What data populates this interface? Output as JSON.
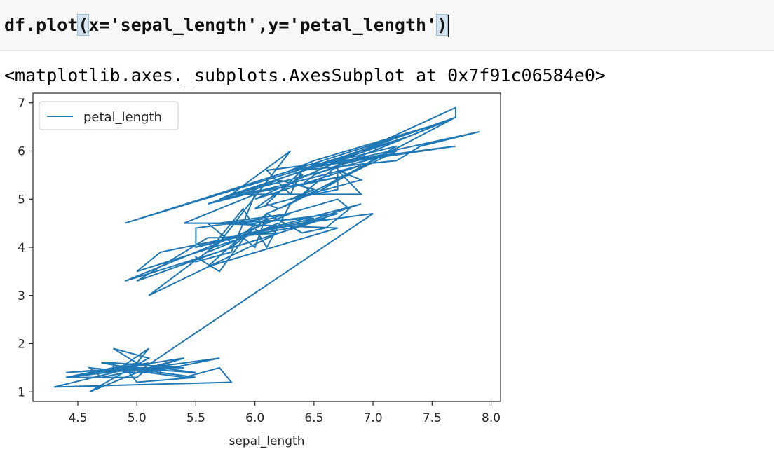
{
  "input_cell": {
    "code_segments": [
      {
        "text": "df.plot",
        "highlight": false
      },
      {
        "text": "(",
        "highlight": true
      },
      {
        "text": "x='sepal_length',y='petal_length'",
        "highlight": false
      },
      {
        "text": ")",
        "highlight": true
      }
    ]
  },
  "output": {
    "repr_text": "<matplotlib.axes._subplots.AxesSubplot at 0x7f91c06584e0>"
  },
  "colors": {
    "series": "#1f77b4",
    "cell_background": "#f7f7f7",
    "paren_highlight": "#d4e4f0"
  },
  "chart_data": {
    "type": "line",
    "title": "",
    "xlabel": "sepal_length",
    "ylabel": "",
    "xlim": [
      4.12,
      8.08
    ],
    "ylim": [
      0.8,
      7.2
    ],
    "xticks": [
      4.5,
      5.0,
      5.5,
      6.0,
      6.5,
      7.0,
      7.5,
      8.0
    ],
    "xtick_labels": [
      "4.5",
      "5.0",
      "5.5",
      "6.0",
      "6.5",
      "7.0",
      "7.5",
      "8.0"
    ],
    "yticks": [
      1,
      2,
      3,
      4,
      5,
      6,
      7
    ],
    "ytick_labels": [
      "1",
      "2",
      "3",
      "4",
      "5",
      "6",
      "7"
    ],
    "grid": false,
    "legend": {
      "position": "upper-left",
      "entries": [
        "petal_length"
      ]
    },
    "series": [
      {
        "name": "petal_length",
        "x": [
          5.1,
          4.9,
          4.7,
          4.6,
          5.0,
          5.4,
          4.6,
          5.0,
          4.4,
          4.9,
          5.4,
          4.8,
          4.8,
          4.3,
          5.8,
          5.7,
          5.4,
          5.1,
          5.7,
          5.1,
          5.4,
          5.1,
          4.6,
          5.1,
          4.8,
          5.0,
          5.0,
          5.2,
          5.2,
          4.7,
          4.8,
          5.4,
          5.2,
          5.5,
          4.9,
          5.0,
          5.5,
          4.9,
          4.4,
          5.1,
          5.0,
          4.5,
          4.4,
          5.0,
          5.1,
          4.8,
          5.1,
          4.6,
          5.3,
          5.0,
          7.0,
          6.4,
          6.9,
          5.5,
          6.5,
          5.7,
          6.3,
          4.9,
          6.6,
          5.2,
          5.0,
          5.9,
          6.0,
          6.1,
          5.6,
          6.7,
          5.6,
          5.8,
          6.2,
          5.6,
          5.9,
          6.1,
          6.3,
          6.1,
          6.4,
          6.6,
          6.8,
          6.7,
          6.0,
          5.7,
          5.5,
          5.5,
          5.8,
          6.0,
          5.4,
          6.0,
          6.7,
          6.3,
          5.6,
          5.5,
          5.5,
          6.1,
          5.8,
          5.0,
          5.6,
          5.7,
          5.7,
          6.2,
          5.1,
          5.7,
          6.3,
          5.8,
          7.1,
          6.3,
          6.5,
          7.6,
          4.9,
          7.3,
          6.7,
          7.2,
          6.5,
          6.4,
          6.8,
          5.7,
          5.8,
          6.4,
          6.5,
          7.7,
          7.7,
          6.0,
          6.9,
          5.6,
          7.7,
          6.3,
          6.7,
          7.2,
          6.2,
          6.1,
          6.4,
          7.2,
          7.4,
          7.9,
          6.4,
          6.3,
          6.1,
          7.7,
          6.3,
          6.4,
          6.0,
          6.9,
          6.7,
          6.9,
          5.8,
          6.8,
          6.7,
          6.7,
          6.3,
          6.5,
          6.2,
          5.9
        ],
        "y": [
          1.4,
          1.4,
          1.3,
          1.5,
          1.4,
          1.7,
          1.4,
          1.5,
          1.4,
          1.5,
          1.5,
          1.6,
          1.4,
          1.1,
          1.2,
          1.5,
          1.3,
          1.4,
          1.7,
          1.5,
          1.7,
          1.5,
          1.0,
          1.7,
          1.9,
          1.6,
          1.6,
          1.5,
          1.4,
          1.6,
          1.6,
          1.5,
          1.5,
          1.4,
          1.5,
          1.2,
          1.3,
          1.5,
          1.3,
          1.5,
          1.3,
          1.3,
          1.3,
          1.6,
          1.9,
          1.4,
          1.6,
          1.4,
          1.5,
          1.4,
          4.7,
          4.5,
          4.9,
          4.0,
          4.6,
          4.5,
          4.7,
          3.3,
          4.6,
          3.9,
          3.5,
          4.2,
          4.0,
          4.7,
          3.6,
          4.4,
          4.5,
          4.1,
          4.5,
          3.9,
          4.8,
          4.0,
          4.9,
          4.7,
          4.3,
          4.4,
          4.8,
          5.0,
          4.5,
          3.5,
          3.8,
          3.7,
          3.9,
          5.1,
          4.5,
          4.5,
          4.7,
          4.4,
          4.1,
          4.0,
          4.4,
          4.6,
          4.0,
          3.3,
          4.2,
          4.2,
          4.2,
          4.3,
          3.0,
          4.1,
          6.0,
          5.1,
          5.9,
          5.6,
          5.8,
          6.6,
          4.5,
          6.3,
          5.8,
          6.1,
          5.1,
          5.3,
          5.5,
          5.0,
          5.1,
          5.3,
          5.5,
          6.7,
          6.9,
          5.0,
          5.7,
          4.9,
          6.7,
          4.9,
          5.7,
          6.0,
          4.8,
          4.9,
          5.6,
          5.8,
          6.1,
          6.4,
          5.6,
          5.1,
          5.6,
          6.1,
          5.6,
          5.5,
          4.8,
          5.4,
          5.6,
          5.1,
          5.1,
          5.9,
          5.7,
          5.2,
          5.0,
          5.2,
          5.4,
          5.1
        ]
      }
    ]
  }
}
